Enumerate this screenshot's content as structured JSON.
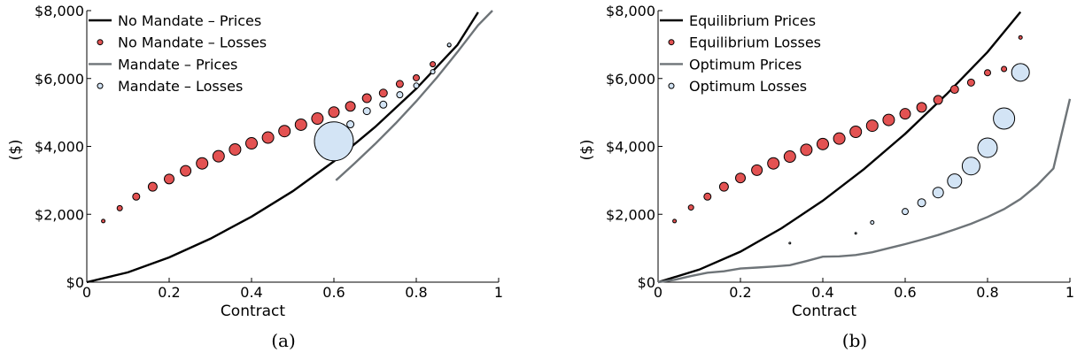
{
  "chart_data": [
    {
      "type": "scatter",
      "panel_label": "(a)",
      "xlabel": "Contract",
      "ylabel": "($)",
      "xlim": [
        0,
        1
      ],
      "ylim": [
        0,
        8000
      ],
      "xticks": [
        "0",
        "0.2",
        "0.4",
        "0.6",
        "0.8",
        "1"
      ],
      "yticks": [
        "$0",
        "$2,000",
        "$4,000",
        "$6,000",
        "$8,000"
      ],
      "grid": false,
      "legend_position": "top-left",
      "series": [
        {
          "name": "No Mandate – Prices",
          "kind": "line",
          "color": "#000000",
          "x": [
            0,
            0.1,
            0.2,
            0.3,
            0.4,
            0.5,
            0.6,
            0.7,
            0.8,
            0.9,
            0.95
          ],
          "y": [
            0,
            290,
            730,
            1280,
            1930,
            2680,
            3560,
            4570,
            5700,
            6990,
            7950
          ]
        },
        {
          "name": "No Mandate – Losses",
          "kind": "bubble",
          "color": "#e35252",
          "x": [
            0.04,
            0.08,
            0.12,
            0.16,
            0.2,
            0.24,
            0.28,
            0.32,
            0.36,
            0.4,
            0.44,
            0.48,
            0.52,
            0.56,
            0.6,
            0.64,
            0.68,
            0.72,
            0.76,
            0.8,
            0.84,
            0.88
          ],
          "y": [
            1800,
            2180,
            2520,
            2810,
            3040,
            3280,
            3500,
            3710,
            3910,
            4090,
            4260,
            4450,
            4640,
            4820,
            5010,
            5180,
            5420,
            5570,
            5840,
            6020,
            6420,
            6980
          ],
          "size": [
            2,
            3,
            4,
            5,
            5.5,
            6,
            6.5,
            6.5,
            6.5,
            6.5,
            6.5,
            6.5,
            6.5,
            6.5,
            6,
            5.5,
            5,
            4.5,
            4,
            3.5,
            3,
            2
          ]
        },
        {
          "name": "Mandate – Prices",
          "kind": "line",
          "color": "#6e7478",
          "x": [
            0.605,
            0.65,
            0.7,
            0.75,
            0.8,
            0.85,
            0.9,
            0.95,
            0.985
          ],
          "y": [
            3000,
            3500,
            4070,
            4680,
            5330,
            6030,
            6780,
            7570,
            8000
          ]
        },
        {
          "name": "Mandate – Losses",
          "kind": "bubble",
          "color": "#d3e4f5",
          "x": [
            0.6,
            0.64,
            0.68,
            0.72,
            0.76,
            0.8,
            0.84,
            0.88
          ],
          "y": [
            4150,
            4650,
            5040,
            5230,
            5520,
            5790,
            6200,
            6990
          ],
          "size": [
            22,
            4,
            4,
            4,
            3.5,
            3,
            2.5,
            2
          ]
        }
      ]
    },
    {
      "type": "scatter",
      "panel_label": "(b)",
      "xlabel": "Contract",
      "ylabel": "($)",
      "xlim": [
        0,
        1
      ],
      "ylim": [
        0,
        8000
      ],
      "xticks": [
        "0",
        "0.2",
        "0.4",
        "0.6",
        "0.8",
        "1"
      ],
      "yticks": [
        "$0",
        "$2,000",
        "$4,000",
        "$6,000",
        "$8,000"
      ],
      "grid": false,
      "legend_position": "top-left",
      "series": [
        {
          "name": "Equilibrium Prices",
          "kind": "line",
          "color": "#000000",
          "x": [
            0,
            0.1,
            0.2,
            0.3,
            0.4,
            0.5,
            0.6,
            0.7,
            0.8,
            0.88
          ],
          "y": [
            0,
            370,
            900,
            1590,
            2400,
            3330,
            4370,
            5530,
            6780,
            7960
          ]
        },
        {
          "name": "Equilibrium Losses",
          "kind": "bubble",
          "color": "#e35252",
          "x": [
            0.04,
            0.08,
            0.12,
            0.16,
            0.2,
            0.24,
            0.28,
            0.32,
            0.36,
            0.4,
            0.44,
            0.48,
            0.52,
            0.56,
            0.6,
            0.64,
            0.68,
            0.72,
            0.76,
            0.8,
            0.84,
            0.88
          ],
          "y": [
            1800,
            2200,
            2520,
            2810,
            3070,
            3300,
            3500,
            3700,
            3900,
            4070,
            4230,
            4430,
            4610,
            4780,
            4960,
            5150,
            5370,
            5680,
            5880,
            6170,
            6280,
            7210
          ],
          "size": [
            2,
            3,
            4,
            5,
            5.5,
            6,
            6.5,
            6.5,
            6.5,
            6.5,
            6.5,
            6.5,
            6.5,
            6.5,
            6,
            5.5,
            5,
            4.5,
            4,
            3.5,
            3,
            2
          ]
        },
        {
          "name": "Optimum Prices",
          "kind": "line",
          "color": "#6e7478",
          "x": [
            0,
            0.04,
            0.08,
            0.12,
            0.16,
            0.2,
            0.24,
            0.28,
            0.32,
            0.36,
            0.4,
            0.44,
            0.48,
            0.52,
            0.56,
            0.6,
            0.64,
            0.68,
            0.72,
            0.76,
            0.8,
            0.84,
            0.88,
            0.92,
            0.96,
            1.0
          ],
          "y": [
            0,
            70,
            180,
            280,
            320,
            400,
            430,
            460,
            500,
            620,
            750,
            760,
            800,
            880,
            1000,
            1120,
            1250,
            1390,
            1550,
            1720,
            1920,
            2150,
            2450,
            2850,
            3350,
            5400
          ]
        },
        {
          "name": "Optimum Losses",
          "kind": "bubble",
          "color": "#d3e4f5",
          "x": [
            0.32,
            0.48,
            0.52,
            0.6,
            0.64,
            0.68,
            0.72,
            0.76,
            0.8,
            0.84,
            0.88
          ],
          "y": [
            1150,
            1440,
            1760,
            2080,
            2340,
            2640,
            2980,
            3420,
            3960,
            4820,
            6180
          ],
          "size": [
            1,
            1,
            2,
            3.5,
            4.5,
            6,
            8,
            10,
            11,
            12,
            10
          ]
        }
      ]
    }
  ]
}
